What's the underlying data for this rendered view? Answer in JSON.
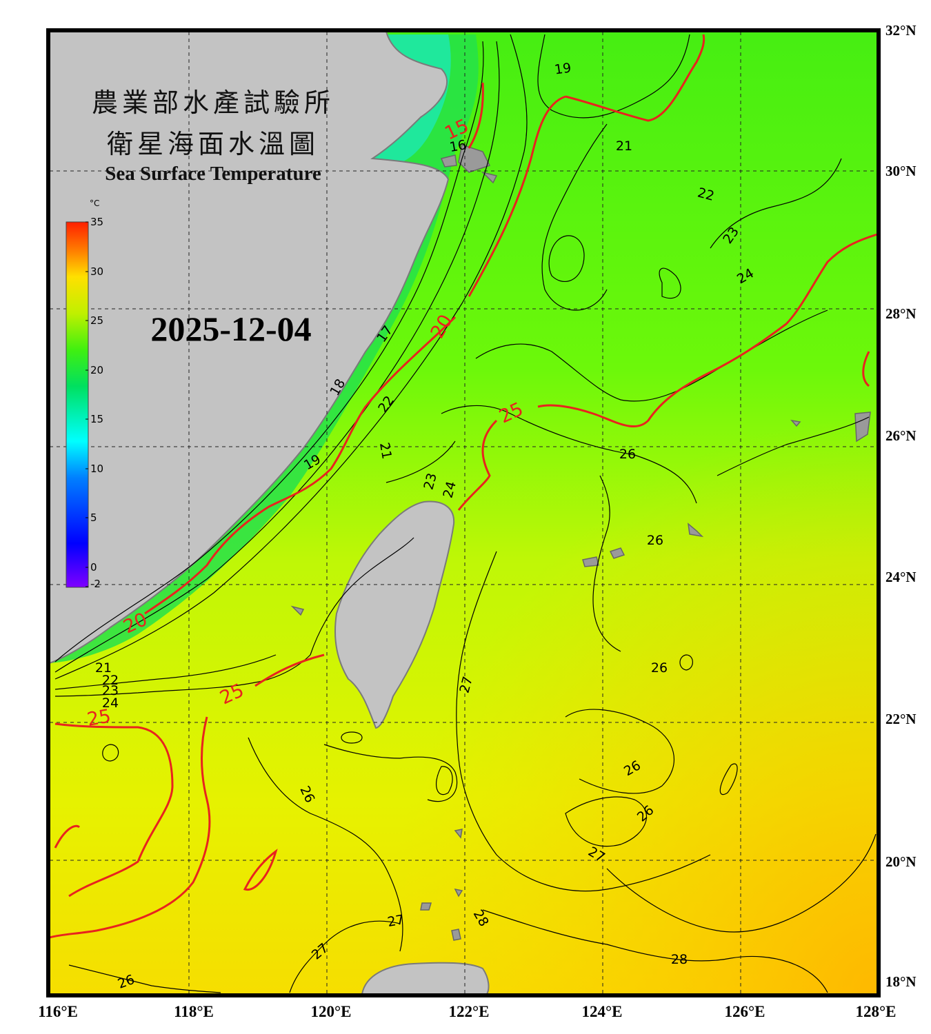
{
  "title": {
    "line1": "農業部水產試驗所",
    "line2": "衛星海面水溫圖",
    "english": "Sea Surface Temperature"
  },
  "date": "2025-12-04",
  "colorbar": {
    "unit": "°C",
    "min": -2,
    "max": 35,
    "ticks": [
      "35",
      "30",
      "25",
      "20",
      "15",
      "10",
      "5",
      "0",
      "-2"
    ]
  },
  "axes": {
    "lon_labels": [
      "116°E",
      "118°E",
      "120°E",
      "122°E",
      "124°E",
      "126°E",
      "128°E"
    ],
    "lat_labels": [
      "32°N",
      "30°N",
      "28°N",
      "26°N",
      "24°N",
      "22°N",
      "20°N",
      "18°N"
    ],
    "lon_range": [
      116,
      128
    ],
    "lat_range": [
      18,
      32
    ],
    "grid": "dashed every 2 degrees"
  },
  "isotherm_labels_black": [
    "16",
    "17",
    "18",
    "19",
    "19",
    "21",
    "21",
    "21",
    "22",
    "22",
    "22",
    "23",
    "23",
    "23",
    "24",
    "24",
    "24",
    "26",
    "26",
    "26",
    "26",
    "26",
    "26",
    "26",
    "27",
    "27",
    "27",
    "27",
    "28",
    "28"
  ],
  "isotherm_labels_red": [
    "15",
    "20",
    "20",
    "25",
    "25",
    "25"
  ],
  "colors": {
    "land": "#c3c3c3",
    "coast_island": "#7a7a7a",
    "contour": "#000000",
    "highlight_contour": "#e8231e",
    "frame": "#000000"
  }
}
